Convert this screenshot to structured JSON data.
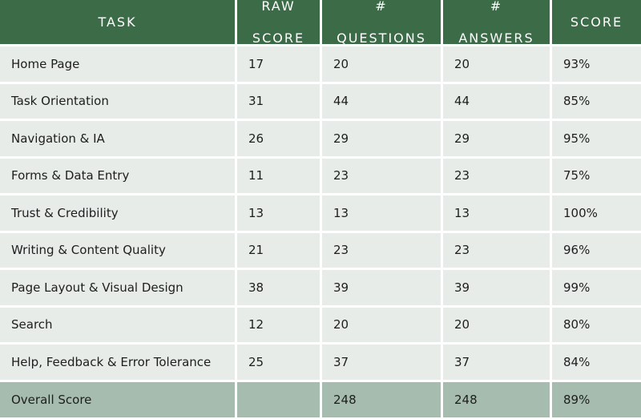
{
  "table": {
    "headers": [
      {
        "line1": "TASK",
        "line2": ""
      },
      {
        "line1": "RAW",
        "line2": "SCORE"
      },
      {
        "line1": "#",
        "line2": "QUESTIONS"
      },
      {
        "line1": "#",
        "line2": "ANSWERS"
      },
      {
        "line1": "SCORE",
        "line2": ""
      }
    ],
    "rows": [
      [
        "Home Page",
        "17",
        "20",
        "20",
        "93%"
      ],
      [
        "Task Orientation",
        "31",
        "44",
        "44",
        "85%"
      ],
      [
        "Navigation & IA",
        "26",
        "29",
        "29",
        "95%"
      ],
      [
        "Forms & Data Entry",
        "11",
        "23",
        "23",
        "75%"
      ],
      [
        "Trust & Credibility",
        "13",
        "13",
        "13",
        "100%"
      ],
      [
        "Writing & Content Quality",
        "21",
        "23",
        "23",
        "96%"
      ],
      [
        "Page Layout & Visual Design",
        "38",
        "39",
        "39",
        "99%"
      ],
      [
        "Search",
        "12",
        "20",
        "20",
        "80%"
      ],
      [
        "Help, Feedback & Error Tolerance",
        "25",
        "37",
        "37",
        "84%"
      ]
    ],
    "footer": [
      "Overall Score",
      "",
      "248",
      "248",
      "89%"
    ]
  },
  "colors": {
    "header_bg": "#3b6b47",
    "row_bg": "#e7ece8",
    "footer_bg": "#a6bcaf",
    "divider": "#ffffff"
  }
}
